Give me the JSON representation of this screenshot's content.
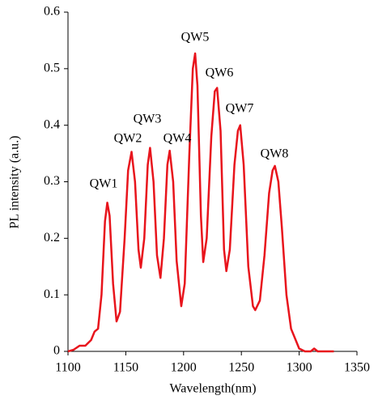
{
  "chart_data": {
    "type": "line",
    "x_label": "Wavelength(nm)",
    "y_label": "PL intensity (a.u.)",
    "xlim": [
      1100,
      1350
    ],
    "xticks": [
      1100,
      1150,
      1200,
      1250,
      1300,
      1350
    ],
    "ylim": [
      0,
      0.6
    ],
    "yticks": [
      0,
      0.1,
      0.2,
      0.3,
      0.4,
      0.5,
      0.6
    ],
    "annotations": [
      "QW1",
      "QW2",
      "QW3",
      "QW4",
      "QW5",
      "QW6",
      "QW7",
      "QW8"
    ],
    "series": [
      {
        "color": "#e8141c",
        "x": [
          1100,
          1105,
          1110,
          1115,
          1120,
          1123,
          1126,
          1129,
          1132,
          1134,
          1136,
          1139,
          1142,
          1145,
          1149,
          1152,
          1155,
          1158,
          1161,
          1163,
          1166,
          1169,
          1171,
          1174,
          1177,
          1180,
          1183,
          1186,
          1188,
          1191,
          1194,
          1198,
          1201,
          1205,
          1208,
          1210,
          1212,
          1215,
          1217,
          1220,
          1224,
          1227,
          1229,
          1232,
          1235,
          1237,
          1240,
          1244,
          1247,
          1249,
          1252,
          1256,
          1260,
          1262,
          1266,
          1270,
          1274,
          1277,
          1279,
          1282,
          1285,
          1289,
          1293,
          1297,
          1300,
          1305,
          1310,
          1313,
          1316,
          1320,
          1330
        ],
        "values": [
          0,
          0.003,
          0.01,
          0.01,
          0.02,
          0.035,
          0.04,
          0.1,
          0.23,
          0.263,
          0.24,
          0.12,
          0.053,
          0.07,
          0.2,
          0.32,
          0.353,
          0.3,
          0.18,
          0.148,
          0.2,
          0.33,
          0.36,
          0.3,
          0.17,
          0.13,
          0.2,
          0.33,
          0.355,
          0.3,
          0.16,
          0.08,
          0.12,
          0.35,
          0.5,
          0.527,
          0.47,
          0.24,
          0.158,
          0.2,
          0.38,
          0.46,
          0.466,
          0.39,
          0.18,
          0.142,
          0.18,
          0.33,
          0.39,
          0.4,
          0.33,
          0.15,
          0.08,
          0.073,
          0.09,
          0.17,
          0.28,
          0.32,
          0.328,
          0.3,
          0.22,
          0.1,
          0.04,
          0.02,
          0.005,
          0,
          0,
          0.005,
          0,
          0,
          0
        ]
      }
    ]
  }
}
